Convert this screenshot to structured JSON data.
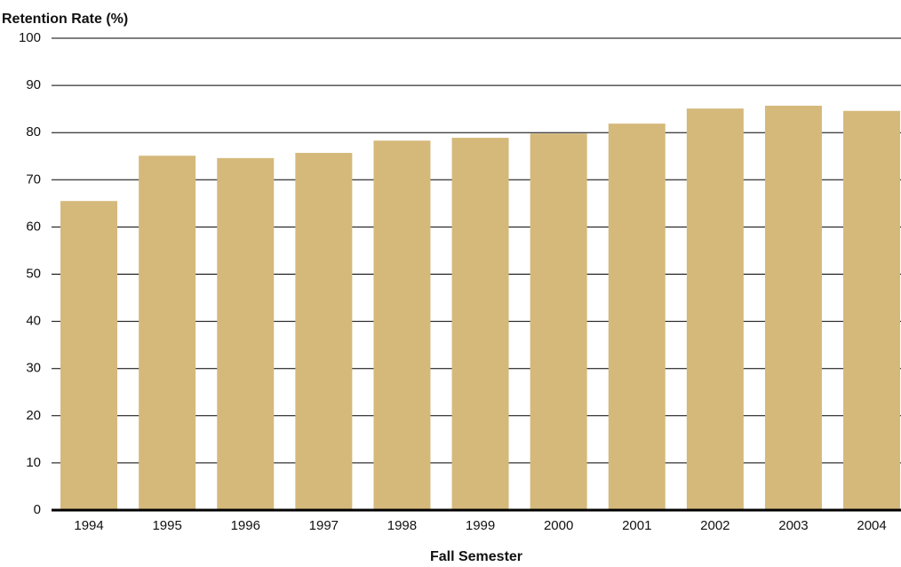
{
  "chart_data": {
    "type": "bar",
    "y_axis_label": "Retention Rate (%)",
    "x_axis_label": "Fall Semester",
    "categories": [
      "1994",
      "1995",
      "1996",
      "1997",
      "1998",
      "1999",
      "2000",
      "2001",
      "2002",
      "2003",
      "2004"
    ],
    "values": [
      65.5,
      75.1,
      74.6,
      75.7,
      78.3,
      78.9,
      79.8,
      81.9,
      85.1,
      85.7,
      84.6
    ],
    "color": "#d5b97b",
    "ylim": [
      0,
      100
    ],
    "yticks": [
      0,
      10,
      20,
      30,
      40,
      50,
      60,
      70,
      80,
      90,
      100
    ],
    "grid": true
  }
}
